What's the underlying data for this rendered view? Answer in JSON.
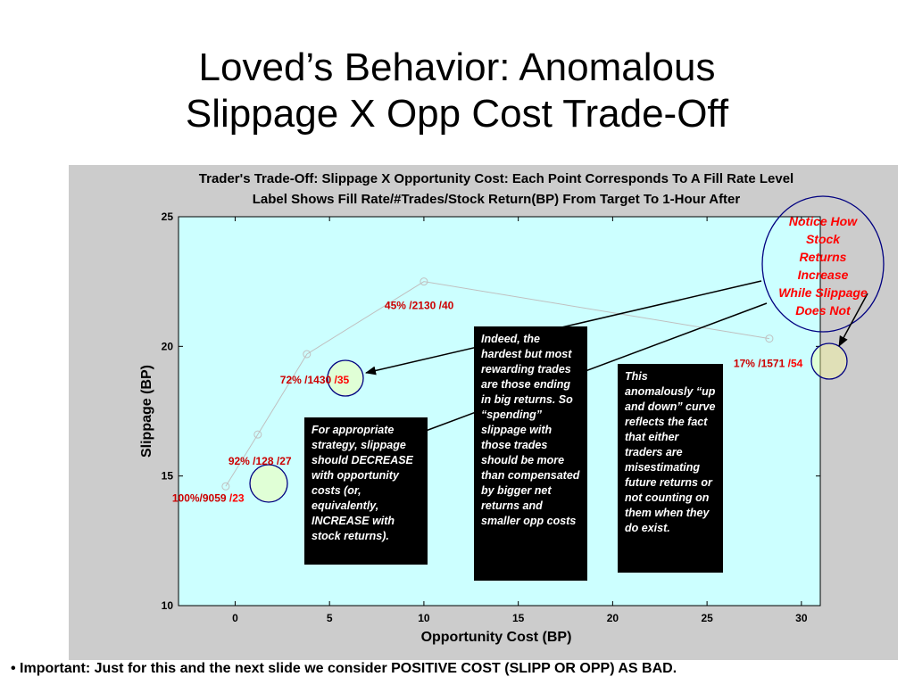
{
  "slide": {
    "title_lines": [
      "Loved’s Behavior: Anomalous",
      "Slippage X Opp Cost Trade-Off"
    ],
    "footnote": "• Important: Just for this and the next slide we consider POSITIVE COST (SLIPP OR OPP) AS BAD."
  },
  "colors": {
    "figure_bg": "#cccccc",
    "plot_bg": "#ccffff",
    "line": "#c0c0c0",
    "label_dark_red": "#cc0000",
    "label_bright_red": "#ff0000",
    "circle_fill": "#ffff99",
    "circle_stroke": "#000080",
    "textbox_bg": "#000000",
    "textbox_text": "#ffffff",
    "arrow": "#000000"
  },
  "chart_data": {
    "type": "line",
    "title_lines": [
      "Trader's Trade-Off: Slippage X Opportunity Cost: Each Point Corresponds To A Fill Rate Level",
      "Label Shows Fill Rate/#Trades/Stock Return(BP) From Target To 1-Hour After"
    ],
    "xlabel": "Opportunity Cost (BP)",
    "ylabel": "Slippage (BP)",
    "xlim": [
      -3,
      31
    ],
    "ylim": [
      10,
      25
    ],
    "xticks": [
      0,
      5,
      10,
      15,
      20,
      25,
      30
    ],
    "yticks": [
      10,
      15,
      20,
      25
    ],
    "grid": false,
    "points": [
      {
        "x": -0.5,
        "y": 14.6,
        "label": "100%/9059 ",
        "ret": "/23"
      },
      {
        "x": 1.2,
        "y": 16.6,
        "label": "92%  /128 ",
        "ret": "/27"
      },
      {
        "x": 3.8,
        "y": 19.7,
        "label": "72%  /1430 ",
        "ret": "/35"
      },
      {
        "x": 10.0,
        "y": 22.5,
        "label": "45%  /2130 ",
        "ret": "/40"
      },
      {
        "x": 28.3,
        "y": 20.3,
        "label": "17%  /1571 ",
        "ret": "/54"
      }
    ]
  },
  "callouts": {
    "notice_lines": [
      "Notice How",
      "Stock",
      "Returns",
      "Increase",
      "While Slippage",
      "Does Not"
    ],
    "box_strategy": "For appropriate strategy, slippage should DECREASE with opportunity costs (or, equivalently, INCREASE with stock returns).",
    "box_indeed": "Indeed, the hardest but most rewarding trades are those ending in big returns. So “spending” slippage with those trades should be more than compensated by bigger net returns and smaller opp costs",
    "box_anomalous": "This anomalously “up and down” curve reflects the fact that either traders are misestimating future returns or not counting on them when they do exist."
  }
}
